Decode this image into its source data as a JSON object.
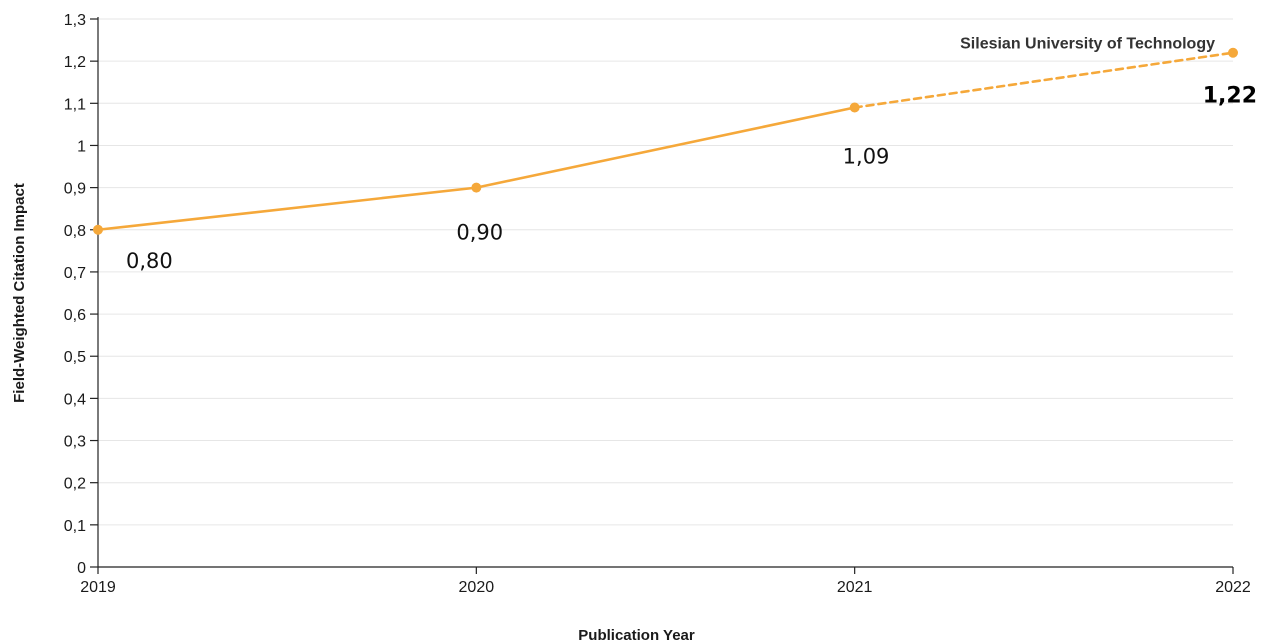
{
  "chart_data": {
    "type": "line",
    "x": [
      "2019",
      "2020",
      "2021",
      "2022"
    ],
    "series": [
      {
        "name": "Silesian University of Technology",
        "values": [
          0.8,
          0.9,
          1.09,
          1.22
        ],
        "color": "#f5a83a",
        "dashed_last_segment": true
      }
    ],
    "data_labels": [
      "0,80",
      "0,90",
      "1,09",
      "1,22"
    ],
    "y_ticks": [
      "0",
      "0,1",
      "0,2",
      "0,3",
      "0,4",
      "0,5",
      "0,6",
      "0,7",
      "0,8",
      "0,9",
      "1",
      "1,1",
      "1,2",
      "1,3"
    ],
    "ylim": [
      0,
      1.3
    ],
    "ystep": 0.1,
    "xlabel": "Publication Year",
    "ylabel": "Field-Weighted Citation Impact",
    "grid": true,
    "legend": "none",
    "colors": {
      "line": "#f5a83a",
      "grid": "#e6e6e6",
      "axis": "#222222"
    }
  }
}
